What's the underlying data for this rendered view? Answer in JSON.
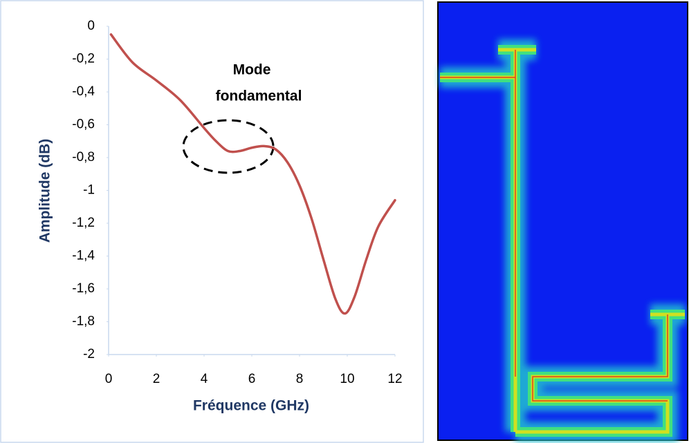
{
  "chart_data": {
    "type": "line",
    "x_label": "Fréquence (GHz)",
    "y_label": "Amplitude (dB)",
    "annotation": [
      "Mode",
      "fondamental"
    ],
    "x": [
      0.1,
      1,
      2,
      3,
      4,
      4.5,
      5,
      5.5,
      6,
      6.5,
      7,
      7.5,
      8,
      8.5,
      9,
      9.5,
      9.9,
      10.3,
      10.8,
      11.3,
      12
    ],
    "series": [
      {
        "color": "#c0504d",
        "values": [
          -0.05,
          -0.22,
          -0.33,
          -0.45,
          -0.62,
          -0.7,
          -0.76,
          -0.76,
          -0.74,
          -0.73,
          -0.75,
          -0.83,
          -0.97,
          -1.17,
          -1.42,
          -1.66,
          -1.75,
          -1.65,
          -1.42,
          -1.22,
          -1.06
        ]
      }
    ],
    "xlim": [
      0,
      12
    ],
    "xticks": [
      0,
      2,
      4,
      6,
      8,
      10,
      12
    ],
    "ylim": [
      -2,
      0
    ],
    "yticks": [
      0,
      {
        "value": -0.2,
        "label": "-0,2"
      },
      {
        "value": -0.4,
        "label": "-0,4"
      },
      {
        "value": -0.6,
        "label": "-0,6"
      },
      {
        "value": -0.8,
        "label": "-0,8"
      },
      -1,
      {
        "value": -1.2,
        "label": "-1,2"
      },
      {
        "value": -1.4,
        "label": "-1,4"
      },
      {
        "value": -1.6,
        "label": "-1,6"
      },
      {
        "value": -1.8,
        "label": "-1,8"
      },
      -2
    ]
  }
}
